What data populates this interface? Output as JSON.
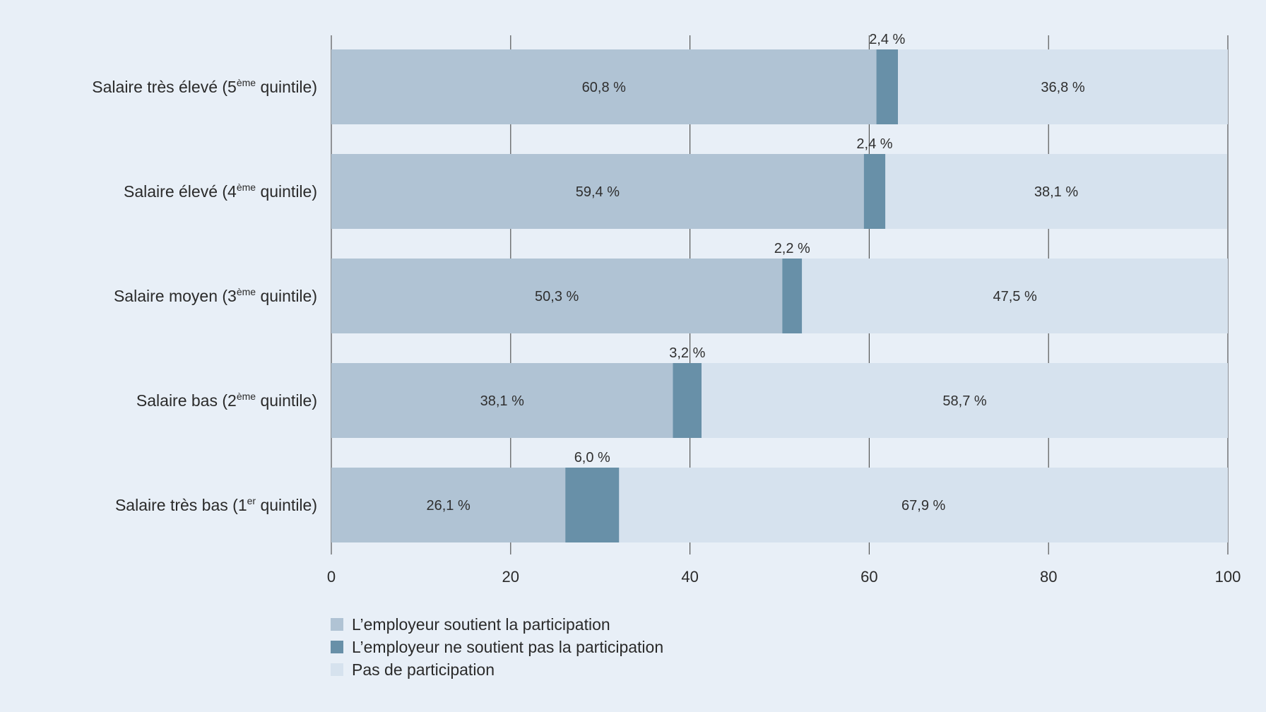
{
  "chart_data": {
    "type": "bar",
    "orientation": "horizontal",
    "stacked": true,
    "categories": [
      {
        "text": "Salaire très élevé (5",
        "sup": "ème",
        "tail": " quintile)"
      },
      {
        "text": "Salaire élevé (4",
        "sup": "ème",
        "tail": " quintile)"
      },
      {
        "text": "Salaire moyen (3",
        "sup": "ème",
        "tail": " quintile)"
      },
      {
        "text": "Salaire bas (2",
        "sup": "ème",
        "tail": " quintile)"
      },
      {
        "text": "Salaire très bas (1",
        "sup": "er",
        "tail": " quintile)"
      }
    ],
    "series": [
      {
        "name": "L’employeur soutient la participation",
        "color": "#b0c3d4",
        "values": [
          60.8,
          59.4,
          50.3,
          38.1,
          26.1
        ],
        "labels": [
          "60,8 %",
          "59,4 %",
          "50,3 %",
          "38,1 %",
          "26,1 %"
        ]
      },
      {
        "name": "L’employeur ne soutient pas la participation",
        "color": "#6890a8",
        "values": [
          2.4,
          2.4,
          2.2,
          3.2,
          6.0
        ],
        "labels": [
          "2,4 %",
          "2,4 %",
          "2,2 %",
          "3,2 %",
          "6,0 %"
        ]
      },
      {
        "name": "Pas de participation",
        "color": "#d6e2ee",
        "values": [
          36.8,
          38.1,
          47.5,
          58.7,
          67.9
        ],
        "labels": [
          "36,8 %",
          "38,1 %",
          "47,5 %",
          "58,7 %",
          "67,9 %"
        ]
      }
    ],
    "xlim": [
      0,
      100
    ],
    "xticks": [
      0,
      20,
      40,
      60,
      80,
      100
    ],
    "xtick_labels": [
      "0",
      "20",
      "40",
      "60",
      "80",
      "100"
    ],
    "grid": "vertical",
    "legend": "bottom-left",
    "colors": {
      "background": "#e8eff7",
      "grid": "#555555",
      "text": "#2a2a2a"
    }
  }
}
